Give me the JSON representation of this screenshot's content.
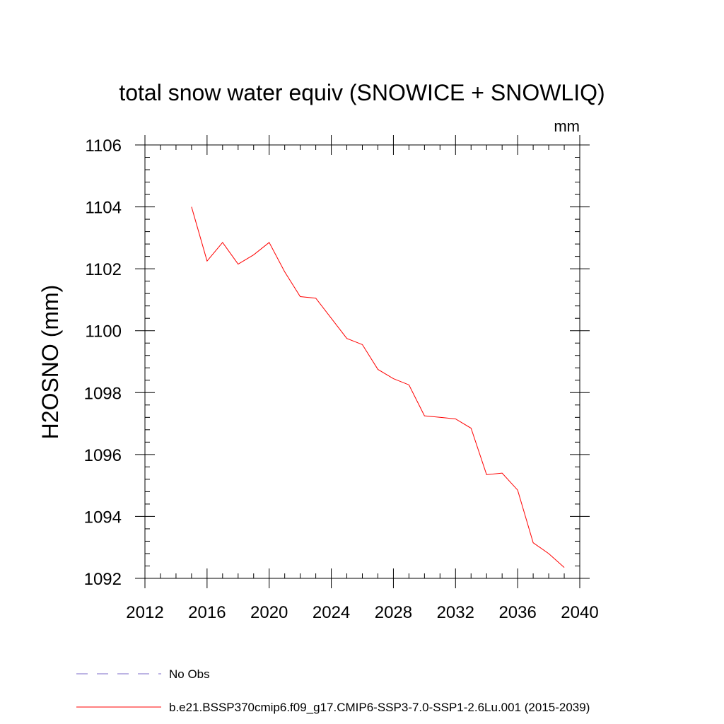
{
  "chart_data": {
    "type": "line",
    "title": "total snow water equiv (SNOWICE + SNOWLIQ)",
    "units": "mm",
    "ylabel": "H2OSNO  (mm)",
    "xlabel": "",
    "xlim": [
      2012,
      2040
    ],
    "ylim": [
      1092,
      1106
    ],
    "xticks": [
      2012,
      2016,
      2020,
      2024,
      2028,
      2032,
      2036,
      2040
    ],
    "yticks": [
      1092,
      1094,
      1096,
      1098,
      1100,
      1102,
      1104,
      1106
    ],
    "x_minor_step": 1,
    "y_minor_step": 0.4,
    "grid": false,
    "legend_position": "bottom",
    "series": [
      {
        "name": "No Obs",
        "style": "dashed",
        "color": "#7b68c8",
        "x": [],
        "values": []
      },
      {
        "name": "b.e21.BSSP370cmip6.f09_g17.CMIP6-SSP3-7.0-SSP1-2.6Lu.001 (2015-2039)",
        "style": "solid",
        "color": "#ff0000",
        "x": [
          2015,
          2016,
          2017,
          2018,
          2019,
          2020,
          2021,
          2022,
          2023,
          2024,
          2025,
          2026,
          2027,
          2028,
          2029,
          2030,
          2031,
          2032,
          2033,
          2034,
          2035,
          2036,
          2037,
          2038,
          2039
        ],
        "values": [
          1104.0,
          1102.25,
          1102.85,
          1102.15,
          1102.45,
          1102.85,
          1101.9,
          1101.1,
          1101.05,
          1100.4,
          1099.75,
          1099.55,
          1098.75,
          1098.45,
          1098.25,
          1097.25,
          1097.2,
          1097.15,
          1096.85,
          1095.35,
          1095.4,
          1094.85,
          1093.15,
          1092.8,
          1092.35
        ]
      }
    ]
  }
}
